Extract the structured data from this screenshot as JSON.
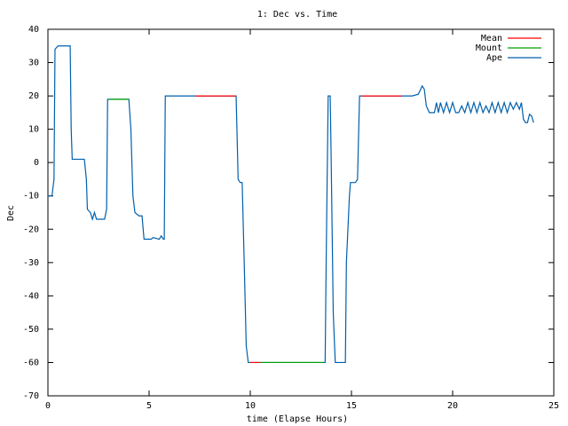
{
  "chart_data": {
    "type": "line",
    "title": "1: Dec vs. Time",
    "x_label": "time (Elapse Hours)",
    "y_label": "Dec",
    "xlim": [
      0,
      25
    ],
    "xticks": [
      0,
      5,
      10,
      15,
      20,
      25
    ],
    "ylim": [
      -70,
      40
    ],
    "yticks": [
      -70,
      -60,
      -50,
      -40,
      -30,
      -20,
      -10,
      0,
      10,
      20,
      30,
      40
    ],
    "legend": "top-right",
    "series": [
      {
        "name": "Mean",
        "color": "#ff0000",
        "x": [
          7.3,
          9.3,
          9.3,
          10.0,
          10.5,
          10.5,
          15.5,
          17.5
        ],
        "values": [
          20,
          20,
          null,
          -60,
          -60,
          null,
          20,
          20
        ]
      },
      {
        "name": "Mount",
        "color": "#00a000",
        "x": [
          3.0,
          4.0,
          4.0,
          10.5,
          13.6
        ],
        "values": [
          19,
          19,
          null,
          -60,
          -60
        ]
      },
      {
        "name": "Ape",
        "color": "#0060ad",
        "x": [
          0,
          0.2,
          0.3,
          0.35,
          0.5,
          1.1,
          1.15,
          1.2,
          1.5,
          1.8,
          1.9,
          1.95,
          2.1,
          2.2,
          2.3,
          2.4,
          2.8,
          2.9,
          2.95,
          3.0,
          4.0,
          4.1,
          4.2,
          4.3,
          4.5,
          4.65,
          4.75,
          5.1,
          5.2,
          5.5,
          5.6,
          5.7,
          5.75,
          5.8,
          9.3,
          9.4,
          9.5,
          9.6,
          9.7,
          9.8,
          9.9,
          13.7,
          13.75,
          13.85,
          13.95,
          14.0,
          14.1,
          14.2,
          14.7,
          14.75,
          14.9,
          14.95,
          15.2,
          15.3,
          15.4,
          18.0,
          18.3,
          18.5,
          18.6,
          18.7,
          18.85,
          19.1,
          19.2,
          19.3,
          19.4,
          19.55,
          19.7,
          19.85,
          20.0,
          20.15,
          20.3,
          20.45,
          20.6,
          20.75,
          20.9,
          21.05,
          21.2,
          21.35,
          21.5,
          21.65,
          21.8,
          21.95,
          22.1,
          22.25,
          22.4,
          22.55,
          22.7,
          22.85,
          23.0,
          23.15,
          23.3,
          23.4,
          23.5,
          23.6,
          23.7,
          23.8,
          23.9,
          24.0
        ],
        "values": [
          -10,
          -10,
          -5,
          34,
          35,
          35,
          10,
          1,
          1,
          1,
          -5,
          -14,
          -15,
          -17,
          -15,
          -17,
          -17,
          -14,
          19,
          19,
          19,
          10,
          -10,
          -15,
          -16,
          -16,
          -23,
          -23,
          -22.5,
          -23,
          -22,
          -23,
          -23,
          20,
          20,
          -5,
          -6,
          -6,
          -30,
          -55,
          -60,
          -60,
          -30,
          20,
          20,
          0,
          -45,
          -60,
          -60,
          -30,
          -10,
          -6,
          -6,
          -5,
          20,
          20,
          20.5,
          23,
          22,
          17,
          15,
          15,
          18,
          15,
          18,
          15,
          18,
          15,
          18,
          15,
          15,
          17,
          15,
          18,
          15,
          18,
          15,
          18,
          15,
          17,
          15,
          18,
          15,
          18,
          15,
          18,
          15,
          18,
          16,
          18,
          16,
          18,
          13,
          12,
          12,
          14.5,
          14,
          12
        ]
      }
    ]
  }
}
